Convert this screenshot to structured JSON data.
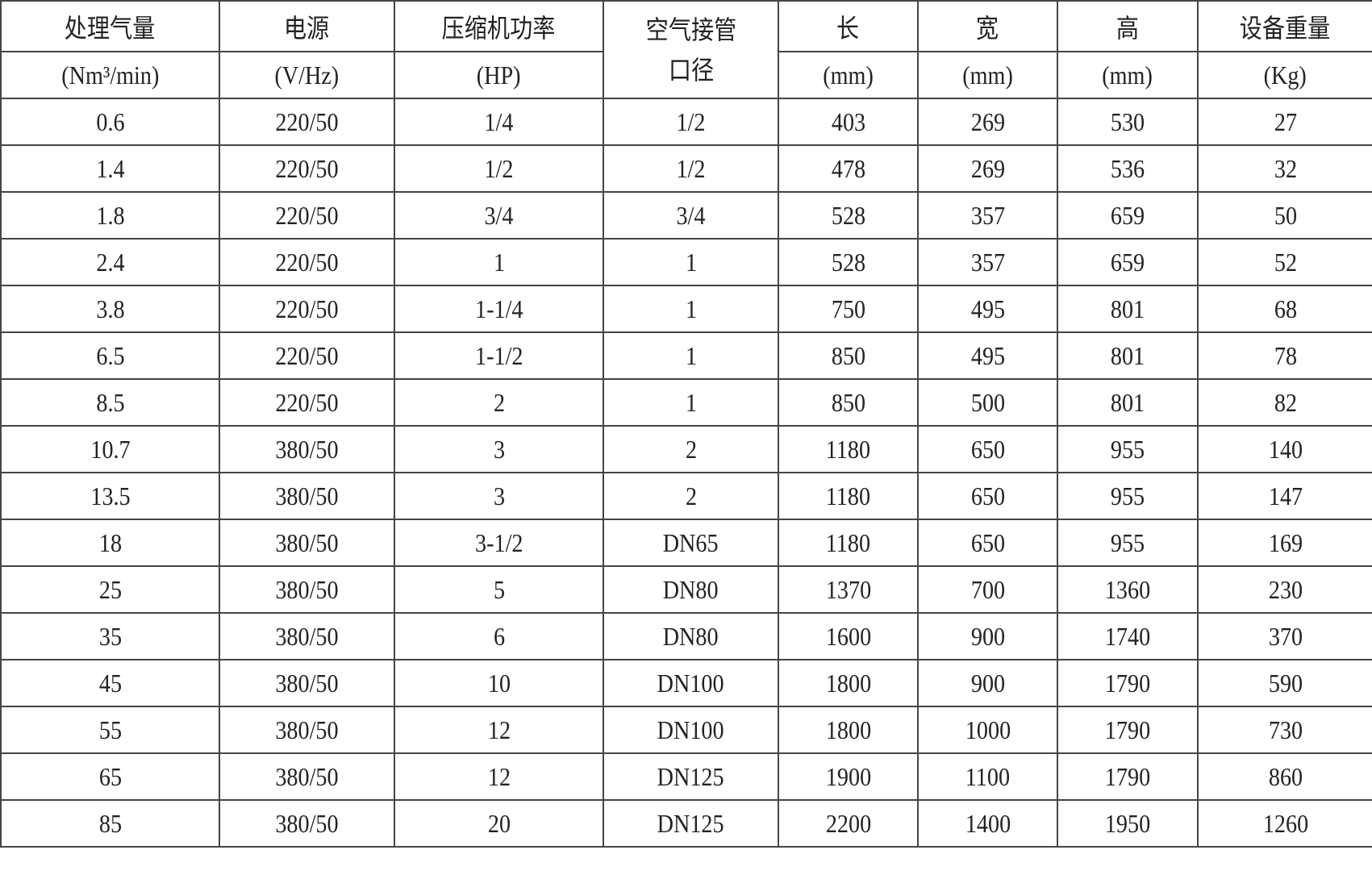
{
  "header": {
    "row1": [
      "处理气量",
      "电源",
      "压缩机功率",
      "空气接管口径",
      "长",
      "宽",
      "高",
      "设备重量"
    ],
    "row2": [
      "(Nm³/min)",
      "(V/Hz)",
      "(HP)",
      "(mm)",
      "(mm)",
      "(mm)",
      "(Kg)"
    ]
  },
  "rows": [
    [
      "0.6",
      "220/50",
      "1/4",
      "1/2",
      "403",
      "269",
      "530",
      "27"
    ],
    [
      "1.4",
      "220/50",
      "1/2",
      "1/2",
      "478",
      "269",
      "536",
      "32"
    ],
    [
      "1.8",
      "220/50",
      "3/4",
      "3/4",
      "528",
      "357",
      "659",
      "50"
    ],
    [
      "2.4",
      "220/50",
      "1",
      "1",
      "528",
      "357",
      "659",
      "52"
    ],
    [
      "3.8",
      "220/50",
      "1-1/4",
      "1",
      "750",
      "495",
      "801",
      "68"
    ],
    [
      "6.5",
      "220/50",
      "1-1/2",
      "1",
      "850",
      "495",
      "801",
      "78"
    ],
    [
      "8.5",
      "220/50",
      "2",
      "1",
      "850",
      "500",
      "801",
      "82"
    ],
    [
      "10.7",
      "380/50",
      "3",
      "2",
      "1180",
      "650",
      "955",
      "140"
    ],
    [
      "13.5",
      "380/50",
      "3",
      "2",
      "1180",
      "650",
      "955",
      "147"
    ],
    [
      "18",
      "380/50",
      "3-1/2",
      "DN65",
      "1180",
      "650",
      "955",
      "169"
    ],
    [
      "25",
      "380/50",
      "5",
      "DN80",
      "1370",
      "700",
      "1360",
      "230"
    ],
    [
      "35",
      "380/50",
      "6",
      "DN80",
      "1600",
      "900",
      "1740",
      "370"
    ],
    [
      "45",
      "380/50",
      "10",
      "DN100",
      "1800",
      "900",
      "1790",
      "590"
    ],
    [
      "55",
      "380/50",
      "12",
      "DN100",
      "1800",
      "1000",
      "1790",
      "730"
    ],
    [
      "65",
      "380/50",
      "12",
      "DN125",
      "1900",
      "1100",
      "1790",
      "860"
    ],
    [
      "85",
      "380/50",
      "20",
      "DN125",
      "2200",
      "1400",
      "1950",
      "1260"
    ]
  ]
}
